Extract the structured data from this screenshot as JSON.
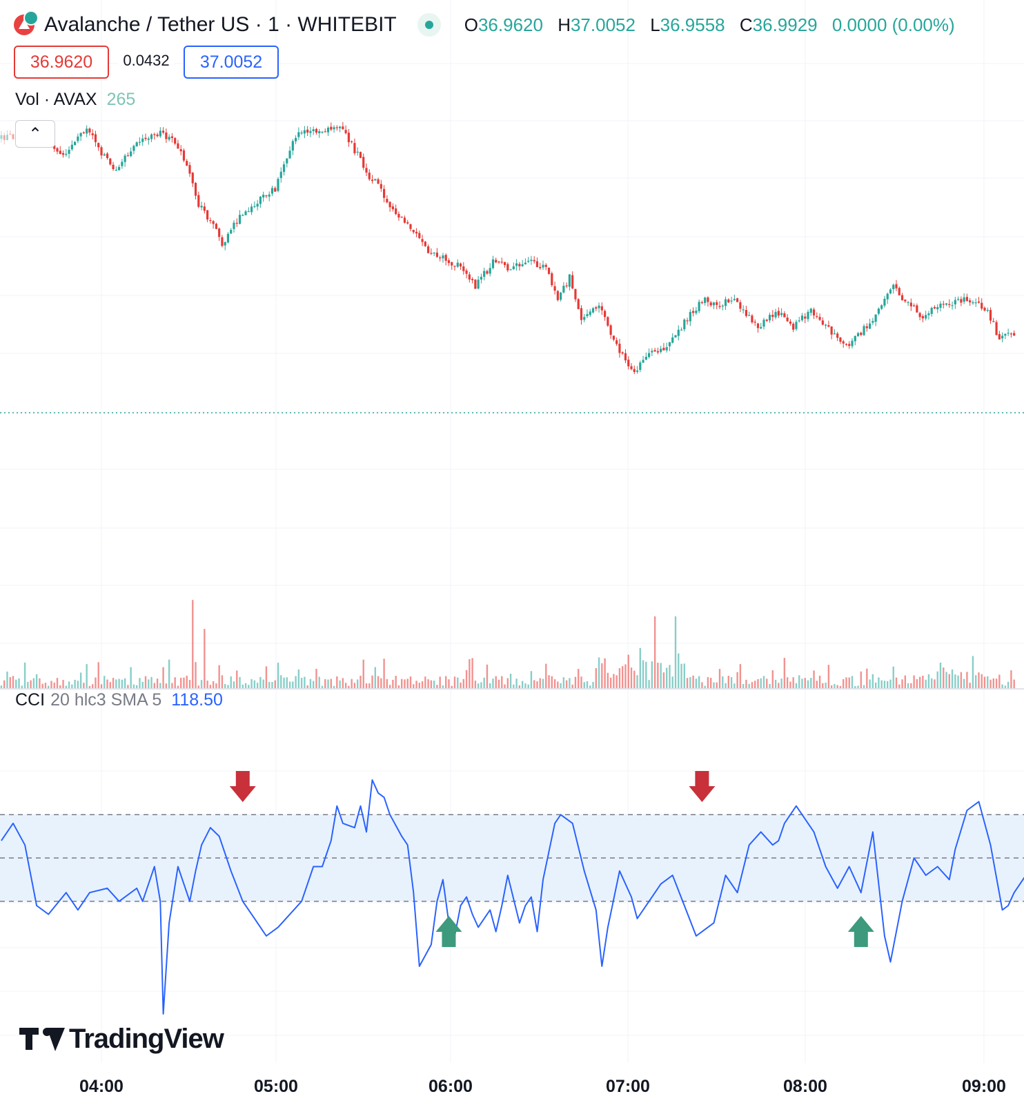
{
  "header": {
    "pair": "Avalanche / Tether US",
    "interval": "1",
    "exchange": "WHITEBIT",
    "title": "Avalanche / Tether US · 1 · WHITEBIT",
    "ohlc": {
      "o_label": "O",
      "o": "36.9620",
      "h_label": "H",
      "h": "37.0052",
      "l_label": "L",
      "l": "36.9558",
      "c_label": "C",
      "c": "36.9929",
      "change": "0.0000 (0.00%)"
    }
  },
  "trade": {
    "sell_price": "36.9620",
    "spread": "0.0432",
    "buy_price": "37.0052"
  },
  "volume_legend": {
    "label": "Vol · AVAX",
    "value": "265"
  },
  "collapse_icon": "chevron-up",
  "cci_legend": {
    "name": "CCI",
    "params": "20 hlc3 SMA 5",
    "value": "118.50"
  },
  "watermark": "TradingView",
  "colors": {
    "up": "#26a69a",
    "down": "#e53935",
    "cci_line": "#2962ff",
    "cci_band": "#e8f2fc",
    "up_arrow": "#3d9a7d",
    "down_arrow": "#c8303a"
  },
  "chart_data": {
    "type": "candlestick",
    "x_axis_ticks": [
      "04:00",
      "05:00",
      "06:00",
      "07:00",
      "08:00",
      "09:00"
    ],
    "price_path": [
      [
        "03:26",
        0.76
      ],
      [
        "03:40",
        0.79
      ],
      [
        "03:48",
        0.7
      ],
      [
        "03:56",
        0.8
      ],
      [
        "04:02",
        0.7
      ],
      [
        "04:06",
        0.66
      ],
      [
        "04:10",
        0.71
      ],
      [
        "04:15",
        0.77
      ],
      [
        "04:22",
        0.78
      ],
      [
        "04:28",
        0.73
      ],
      [
        "04:30",
        0.67
      ],
      [
        "04:34",
        0.55
      ],
      [
        "04:40",
        0.46
      ],
      [
        "04:42",
        0.42
      ],
      [
        "04:48",
        0.51
      ],
      [
        "04:54",
        0.56
      ],
      [
        "05:00",
        0.6
      ],
      [
        "05:04",
        0.7
      ],
      [
        "05:08",
        0.79
      ],
      [
        "05:16",
        0.79
      ],
      [
        "05:22",
        0.8
      ],
      [
        "05:28",
        0.71
      ],
      [
        "05:32",
        0.64
      ],
      [
        "05:36",
        0.6
      ],
      [
        "05:38",
        0.56
      ],
      [
        "05:46",
        0.47
      ],
      [
        "05:52",
        0.4
      ],
      [
        "05:58",
        0.37
      ],
      [
        "06:02",
        0.35
      ],
      [
        "06:08",
        0.28
      ],
      [
        "06:14",
        0.36
      ],
      [
        "06:20",
        0.34
      ],
      [
        "06:26",
        0.37
      ],
      [
        "06:32",
        0.34
      ],
      [
        "06:36",
        0.24
      ],
      [
        "06:40",
        0.31
      ],
      [
        "06:44",
        0.18
      ],
      [
        "06:50",
        0.22
      ],
      [
        "06:56",
        0.09
      ],
      [
        "07:02",
        0.0
      ],
      [
        "07:06",
        0.06
      ],
      [
        "07:12",
        0.08
      ],
      [
        "07:16",
        0.12
      ],
      [
        "07:20",
        0.18
      ],
      [
        "07:26",
        0.24
      ],
      [
        "07:30",
        0.22
      ],
      [
        "07:36",
        0.24
      ],
      [
        "07:44",
        0.15
      ],
      [
        "07:50",
        0.2
      ],
      [
        "07:56",
        0.15
      ],
      [
        "08:02",
        0.2
      ],
      [
        "08:08",
        0.14
      ],
      [
        "08:14",
        0.09
      ],
      [
        "08:18",
        0.12
      ],
      [
        "08:26",
        0.21
      ],
      [
        "08:30",
        0.29
      ],
      [
        "08:34",
        0.23
      ],
      [
        "08:40",
        0.18
      ],
      [
        "08:46",
        0.23
      ],
      [
        "08:50",
        0.23
      ],
      [
        "08:56",
        0.24
      ],
      [
        "09:02",
        0.2
      ],
      [
        "09:06",
        0.11
      ],
      [
        "09:10",
        0.13
      ]
    ],
    "volume_spikes": [
      [
        "04:31",
        0.92
      ],
      [
        "04:35",
        0.62
      ],
      [
        "07:08",
        0.75
      ],
      [
        "07:15",
        0.75
      ]
    ],
    "cci": {
      "upper": 100,
      "lower": -100,
      "mid": 0,
      "band_shaded": true,
      "values": [
        [
          "03:26",
          40
        ],
        [
          "03:30",
          80
        ],
        [
          "03:34",
          30
        ],
        [
          "03:38",
          -110
        ],
        [
          "03:42",
          -130
        ],
        [
          "03:48",
          -80
        ],
        [
          "03:52",
          -120
        ],
        [
          "03:56",
          -80
        ],
        [
          "04:02",
          -70
        ],
        [
          "04:06",
          -100
        ],
        [
          "04:10",
          -80
        ],
        [
          "04:12",
          -70
        ],
        [
          "04:14",
          -100
        ],
        [
          "04:18",
          -20
        ],
        [
          "04:20",
          -100
        ],
        [
          "04:21",
          -360
        ],
        [
          "04:23",
          -150
        ],
        [
          "04:26",
          -20
        ],
        [
          "04:30",
          -100
        ],
        [
          "04:32",
          -30
        ],
        [
          "04:34",
          30
        ],
        [
          "04:37",
          70
        ],
        [
          "04:40",
          50
        ],
        [
          "04:44",
          -30
        ],
        [
          "04:48",
          -100
        ],
        [
          "04:52",
          -140
        ],
        [
          "04:56",
          -180
        ],
        [
          "05:00",
          -160
        ],
        [
          "05:04",
          -130
        ],
        [
          "05:08",
          -100
        ],
        [
          "05:12",
          -20
        ],
        [
          "05:15",
          -20
        ],
        [
          "05:18",
          40
        ],
        [
          "05:20",
          120
        ],
        [
          "05:22",
          80
        ],
        [
          "05:26",
          70
        ],
        [
          "05:28",
          120
        ],
        [
          "05:30",
          60
        ],
        [
          "05:32",
          180
        ],
        [
          "05:34",
          150
        ],
        [
          "05:36",
          140
        ],
        [
          "05:38",
          100
        ],
        [
          "05:42",
          50
        ],
        [
          "05:44",
          30
        ],
        [
          "05:46",
          -80
        ],
        [
          "05:48",
          -250
        ],
        [
          "05:52",
          -200
        ],
        [
          "05:54",
          -100
        ],
        [
          "05:56",
          -50
        ],
        [
          "05:58",
          -150
        ],
        [
          "06:00",
          -180
        ],
        [
          "06:02",
          -110
        ],
        [
          "06:04",
          -90
        ],
        [
          "06:06",
          -130
        ],
        [
          "06:08",
          -160
        ],
        [
          "06:12",
          -120
        ],
        [
          "06:14",
          -170
        ],
        [
          "06:16",
          -110
        ],
        [
          "06:18",
          -40
        ],
        [
          "06:22",
          -150
        ],
        [
          "06:24",
          -110
        ],
        [
          "06:26",
          -90
        ],
        [
          "06:28",
          -170
        ],
        [
          "06:30",
          -50
        ],
        [
          "06:34",
          80
        ],
        [
          "06:36",
          100
        ],
        [
          "06:40",
          80
        ],
        [
          "06:44",
          -30
        ],
        [
          "06:48",
          -120
        ],
        [
          "06:50",
          -250
        ],
        [
          "06:52",
          -160
        ],
        [
          "06:56",
          -30
        ],
        [
          "07:00",
          -90
        ],
        [
          "07:02",
          -140
        ],
        [
          "07:06",
          -100
        ],
        [
          "07:10",
          -60
        ],
        [
          "07:14",
          -40
        ],
        [
          "07:18",
          -110
        ],
        [
          "07:22",
          -180
        ],
        [
          "07:28",
          -150
        ],
        [
          "07:32",
          -40
        ],
        [
          "07:36",
          -80
        ],
        [
          "07:40",
          30
        ],
        [
          "07:44",
          60
        ],
        [
          "07:48",
          30
        ],
        [
          "07:50",
          40
        ],
        [
          "07:52",
          80
        ],
        [
          "07:56",
          120
        ],
        [
          "07:58",
          100
        ],
        [
          "08:02",
          60
        ],
        [
          "08:06",
          -20
        ],
        [
          "08:10",
          -70
        ],
        [
          "08:14",
          -20
        ],
        [
          "08:18",
          -80
        ],
        [
          "08:22",
          60
        ],
        [
          "08:24",
          -60
        ],
        [
          "08:26",
          -180
        ],
        [
          "08:28",
          -240
        ],
        [
          "08:32",
          -100
        ],
        [
          "08:36",
          0
        ],
        [
          "08:40",
          -40
        ],
        [
          "08:44",
          -20
        ],
        [
          "08:48",
          -50
        ],
        [
          "08:50",
          20
        ],
        [
          "08:54",
          110
        ],
        [
          "08:58",
          130
        ],
        [
          "09:02",
          30
        ],
        [
          "09:06",
          -120
        ],
        [
          "09:08",
          -110
        ],
        [
          "09:10",
          -80
        ],
        [
          "09:14",
          -40
        ],
        [
          "09:18",
          -20
        ],
        [
          "09:22",
          20
        ],
        [
          "09:26",
          -120
        ],
        [
          "09:28",
          -200
        ],
        [
          "09:30",
          -110
        ],
        [
          "09:32",
          -80
        ]
      ],
      "sell_markers": [
        "04:48",
        "07:24"
      ],
      "buy_markers": [
        "05:58",
        "08:18"
      ]
    }
  }
}
